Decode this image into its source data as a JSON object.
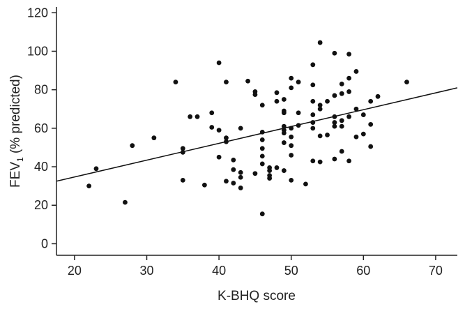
{
  "chart_data": {
    "type": "scatter",
    "xlabel": "K-BHQ score",
    "ylabel": {
      "prefix": "FEV",
      "subscript": "1",
      "suffix": " (% predicted)"
    },
    "xlim": [
      17.5,
      73
    ],
    "ylim": [
      -6,
      123
    ],
    "xticks": [
      20,
      30,
      40,
      50,
      60,
      70
    ],
    "yticks": [
      0,
      20,
      40,
      60,
      80,
      100,
      120
    ],
    "grid": false,
    "colors": {
      "points": "#111111",
      "line": "#111111",
      "axis": "#222222"
    },
    "trendline": {
      "x": [
        17.5,
        73
      ],
      "y": [
        32.5,
        81
      ]
    },
    "points": [
      {
        "x": 22,
        "y": 30
      },
      {
        "x": 23,
        "y": 39
      },
      {
        "x": 27,
        "y": 21.5
      },
      {
        "x": 28,
        "y": 51
      },
      {
        "x": 31,
        "y": 55
      },
      {
        "x": 34,
        "y": 84
      },
      {
        "x": 35,
        "y": 49.5
      },
      {
        "x": 35,
        "y": 47.5
      },
      {
        "x": 35,
        "y": 33
      },
      {
        "x": 36,
        "y": 66
      },
      {
        "x": 37,
        "y": 66
      },
      {
        "x": 38,
        "y": 30.5
      },
      {
        "x": 39,
        "y": 68
      },
      {
        "x": 39,
        "y": 60.5
      },
      {
        "x": 40,
        "y": 94
      },
      {
        "x": 40,
        "y": 59
      },
      {
        "x": 40,
        "y": 45
      },
      {
        "x": 41,
        "y": 84
      },
      {
        "x": 41,
        "y": 55
      },
      {
        "x": 41,
        "y": 53
      },
      {
        "x": 41,
        "y": 32.5
      },
      {
        "x": 42,
        "y": 43.5
      },
      {
        "x": 42,
        "y": 38.5
      },
      {
        "x": 42,
        "y": 31.5
      },
      {
        "x": 43,
        "y": 60
      },
      {
        "x": 43,
        "y": 37
      },
      {
        "x": 43,
        "y": 34.5
      },
      {
        "x": 43,
        "y": 29
      },
      {
        "x": 44,
        "y": 84.5
      },
      {
        "x": 45,
        "y": 79
      },
      {
        "x": 45,
        "y": 77.5
      },
      {
        "x": 45,
        "y": 36.5
      },
      {
        "x": 46,
        "y": 72
      },
      {
        "x": 46,
        "y": 58
      },
      {
        "x": 46,
        "y": 54
      },
      {
        "x": 46,
        "y": 49.5
      },
      {
        "x": 46,
        "y": 45.5
      },
      {
        "x": 46,
        "y": 41.5
      },
      {
        "x": 46,
        "y": 15.5
      },
      {
        "x": 47,
        "y": 39.5
      },
      {
        "x": 47,
        "y": 38
      },
      {
        "x": 47,
        "y": 35.5
      },
      {
        "x": 47,
        "y": 34
      },
      {
        "x": 48,
        "y": 78.5
      },
      {
        "x": 48,
        "y": 74
      },
      {
        "x": 48,
        "y": 39.5
      },
      {
        "x": 49,
        "y": 75
      },
      {
        "x": 49,
        "y": 69
      },
      {
        "x": 49,
        "y": 68
      },
      {
        "x": 49,
        "y": 61
      },
      {
        "x": 49,
        "y": 59
      },
      {
        "x": 49,
        "y": 57.5
      },
      {
        "x": 49,
        "y": 52.5
      },
      {
        "x": 49,
        "y": 38
      },
      {
        "x": 50,
        "y": 86
      },
      {
        "x": 50,
        "y": 81
      },
      {
        "x": 50,
        "y": 60
      },
      {
        "x": 50,
        "y": 55.5
      },
      {
        "x": 50,
        "y": 51
      },
      {
        "x": 50,
        "y": 46
      },
      {
        "x": 50,
        "y": 33
      },
      {
        "x": 51,
        "y": 84
      },
      {
        "x": 51,
        "y": 68
      },
      {
        "x": 51,
        "y": 61.5
      },
      {
        "x": 52,
        "y": 31
      },
      {
        "x": 53,
        "y": 93
      },
      {
        "x": 53,
        "y": 82.5
      },
      {
        "x": 53,
        "y": 74
      },
      {
        "x": 53,
        "y": 67
      },
      {
        "x": 53,
        "y": 63
      },
      {
        "x": 53,
        "y": 60
      },
      {
        "x": 53,
        "y": 43
      },
      {
        "x": 54,
        "y": 104.5
      },
      {
        "x": 54,
        "y": 72
      },
      {
        "x": 54,
        "y": 70
      },
      {
        "x": 54,
        "y": 56
      },
      {
        "x": 54,
        "y": 42.5
      },
      {
        "x": 55,
        "y": 74
      },
      {
        "x": 55,
        "y": 56.5
      },
      {
        "x": 56,
        "y": 99
      },
      {
        "x": 56,
        "y": 77
      },
      {
        "x": 56,
        "y": 66
      },
      {
        "x": 56,
        "y": 63
      },
      {
        "x": 56,
        "y": 61
      },
      {
        "x": 56,
        "y": 44
      },
      {
        "x": 57,
        "y": 83
      },
      {
        "x": 57,
        "y": 78
      },
      {
        "x": 57,
        "y": 64
      },
      {
        "x": 57,
        "y": 61
      },
      {
        "x": 57,
        "y": 48
      },
      {
        "x": 58,
        "y": 98.5
      },
      {
        "x": 58,
        "y": 86
      },
      {
        "x": 58,
        "y": 79
      },
      {
        "x": 58,
        "y": 66
      },
      {
        "x": 58,
        "y": 43
      },
      {
        "x": 59,
        "y": 89.5
      },
      {
        "x": 59,
        "y": 70
      },
      {
        "x": 59,
        "y": 55.5
      },
      {
        "x": 60,
        "y": 67
      },
      {
        "x": 60,
        "y": 57
      },
      {
        "x": 61,
        "y": 74
      },
      {
        "x": 61,
        "y": 62
      },
      {
        "x": 61,
        "y": 50.5
      },
      {
        "x": 62,
        "y": 76.5
      },
      {
        "x": 66,
        "y": 84
      }
    ]
  }
}
